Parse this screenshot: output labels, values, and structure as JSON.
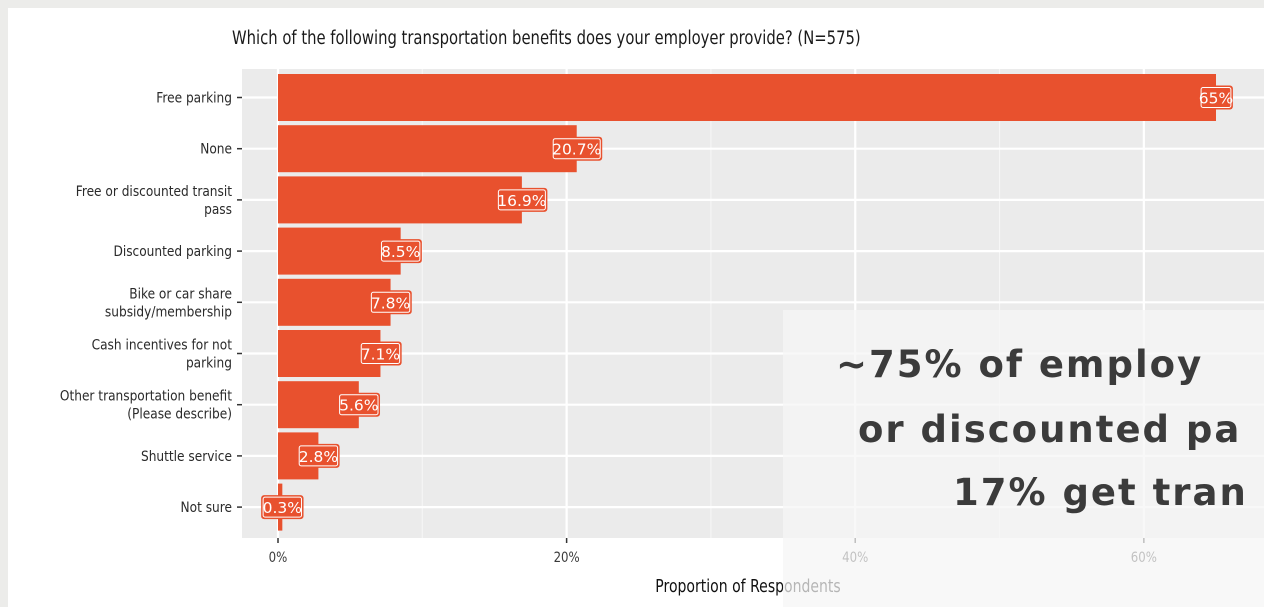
{
  "chart_data": {
    "type": "bar",
    "orientation": "horizontal",
    "title": "Which of the following transportation benefits does your employer provide? (N=575)",
    "xlabel": "Proportion of Respondents",
    "ylabel": "",
    "xlim": [
      0,
      0.65
    ],
    "x_ticks": [
      0,
      0.2,
      0.4,
      0.6
    ],
    "x_tick_labels": [
      "0%",
      "20%",
      "40%",
      "60%"
    ],
    "grid": true,
    "bar_color": "#e8512e",
    "panel_color": "#ebebeb",
    "categories": [
      [
        "Free parking"
      ],
      [
        "None"
      ],
      [
        "Free or discounted transit",
        "pass"
      ],
      [
        "Discounted parking"
      ],
      [
        "Bike or car share",
        "subsidy/membership"
      ],
      [
        "Cash incentives for not",
        "parking"
      ],
      [
        "Other transportation benefit",
        "(Please describe)"
      ],
      [
        "Shuttle service"
      ],
      [
        "Not sure"
      ]
    ],
    "values": [
      0.65,
      0.207,
      0.169,
      0.085,
      0.078,
      0.071,
      0.056,
      0.028,
      0.003
    ],
    "data_labels": [
      "65%",
      "20.7%",
      "16.9%",
      "8.5%",
      "7.8%",
      "7.1%",
      "5.6%",
      "2.8%",
      "0.3%"
    ]
  },
  "callout": {
    "line1": "~75% of employ",
    "line2": "or discounted pa",
    "line3": "17% get tran"
  }
}
